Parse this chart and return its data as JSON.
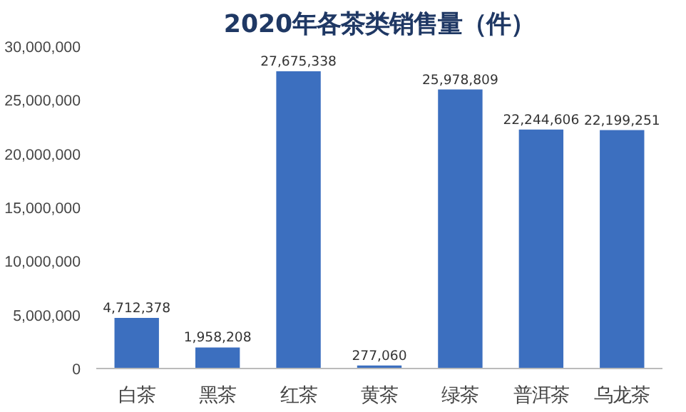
{
  "chart_data": {
    "type": "bar",
    "title": "2020年各茶类销售量（件）",
    "categories": [
      "白茶",
      "黑茶",
      "红茶",
      "黄茶",
      "绿茶",
      "普洱茶",
      "乌龙茶"
    ],
    "values": [
      4712378,
      1958208,
      27675338,
      277060,
      25978809,
      22244606,
      22199251
    ],
    "color": "#3c6fbf",
    "ylim": [
      0,
      30000000
    ],
    "yticks": [
      0,
      {
        "value": 5000000,
        "label": "5,000,000"
      },
      {
        "value": 10000000,
        "label": "10,000,000"
      },
      {
        "value": 15000000,
        "label": "15,000,000"
      },
      {
        "value": 20000000,
        "label": "20,000,000"
      },
      {
        "value": 25000000,
        "label": "25,000,000"
      },
      {
        "value": 30000000,
        "label": "30,000,000"
      }
    ],
    "value_labels": [
      "4,712,378",
      "1,958,208",
      "27,675,338",
      "277,060",
      "25,978,809",
      "22,244,606",
      "22,199,251"
    ],
    "grid": false
  }
}
